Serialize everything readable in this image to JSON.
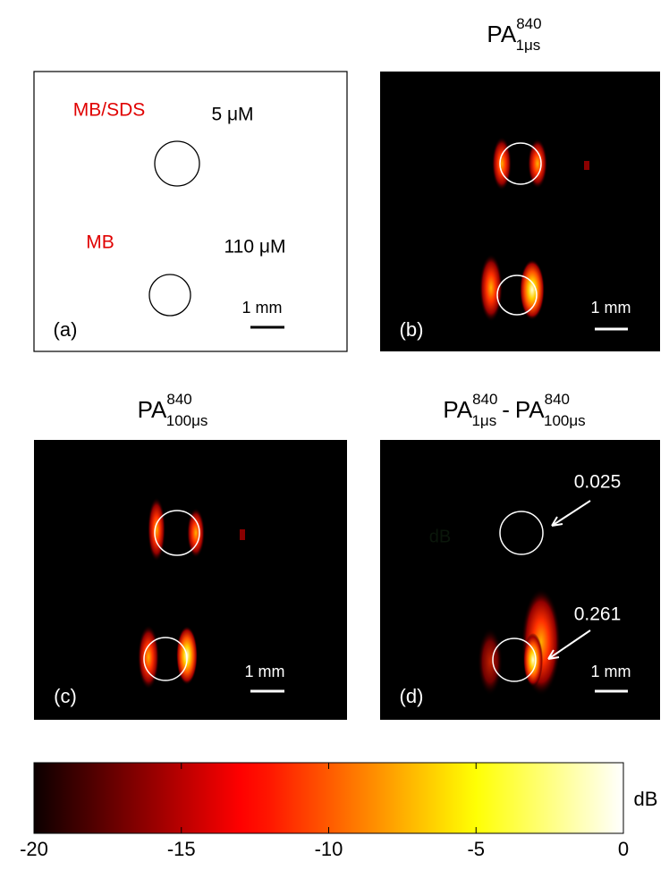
{
  "panels": [
    {
      "label": "(a)",
      "scale_bar": "1 mm",
      "samples": [
        {
          "name": "MB/SDS",
          "concentration": "5 μM"
        },
        {
          "name": "MB",
          "concentration": "110 μM"
        }
      ]
    },
    {
      "title": {
        "base": "PA",
        "sup": "840",
        "sub": "1μs"
      },
      "label": "(b)",
      "scale_bar": "1 mm"
    },
    {
      "title": {
        "base": "PA",
        "sup": "840",
        "sub": "100μs"
      },
      "label": "(c)",
      "scale_bar": "1 mm"
    },
    {
      "title": {
        "base": "PA",
        "sup": "840",
        "sub": "1μs",
        "minus": "-",
        "base2": "PA",
        "sup2": "840",
        "sub2": "100μs"
      },
      "label": "(d)",
      "scale_bar": "1 mm",
      "faint_text": "dB",
      "annotations": [
        "0.025",
        "0.261"
      ]
    }
  ],
  "colorbar": {
    "unit": "dB",
    "range": [
      -20,
      0
    ],
    "ticks": [
      -20,
      -15,
      -10,
      -5,
      0
    ],
    "colormap": "hot"
  }
}
